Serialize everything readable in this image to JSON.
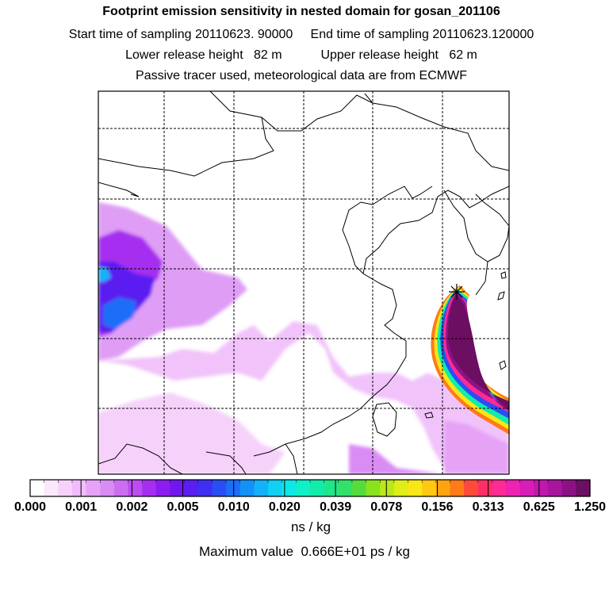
{
  "title": {
    "line1": "Footprint emission sensitivity in nested domain for gosan_201106",
    "line2": "Start time of sampling 20110623. 90000     End time of sampling 20110623.120000",
    "line3": "Lower release height   82 m           Upper release height   62 m",
    "line4": "Passive tracer used, meteorological data are from ECMWF"
  },
  "colorbar": {
    "colors": [
      "#ffffff",
      "#fbe8fd",
      "#f6d2fb",
      "#f0bcf9",
      "#e6a3f6",
      "#d98cf4",
      "#cc6ef1",
      "#bb4cf0",
      "#a62ef0",
      "#8d1cf0",
      "#7216f0",
      "#5a1ef0",
      "#3f2ff2",
      "#2a4df5",
      "#1b6ef8",
      "#1491f9",
      "#12b1f8",
      "#10d0f5",
      "#0ee8e8",
      "#10f0c8",
      "#12ecaa",
      "#1ee68a",
      "#33e06a",
      "#55dc3c",
      "#8ae21e",
      "#bbe81a",
      "#e0ee18",
      "#f8e616",
      "#ffc812",
      "#ffa410",
      "#ff7a18",
      "#ff4a3a",
      "#ff2e66",
      "#ff2a94",
      "#ee22b2",
      "#d81cb8",
      "#c018ac",
      "#a8159c",
      "#8c1283",
      "#6c0e62"
    ],
    "tick_labels": [
      "0.000",
      "0.001",
      "0.002",
      "0.005",
      "0.010",
      "0.020",
      "0.039",
      "0.078",
      "0.156",
      "0.313",
      "0.625",
      "1.250"
    ],
    "units": "ns / kg"
  },
  "footer": {
    "max_value": "Maximum value  0.666E+01 ps / kg"
  },
  "colors": {
    "frame": "#000000",
    "grid": "#000000",
    "coast": "#000000"
  }
}
